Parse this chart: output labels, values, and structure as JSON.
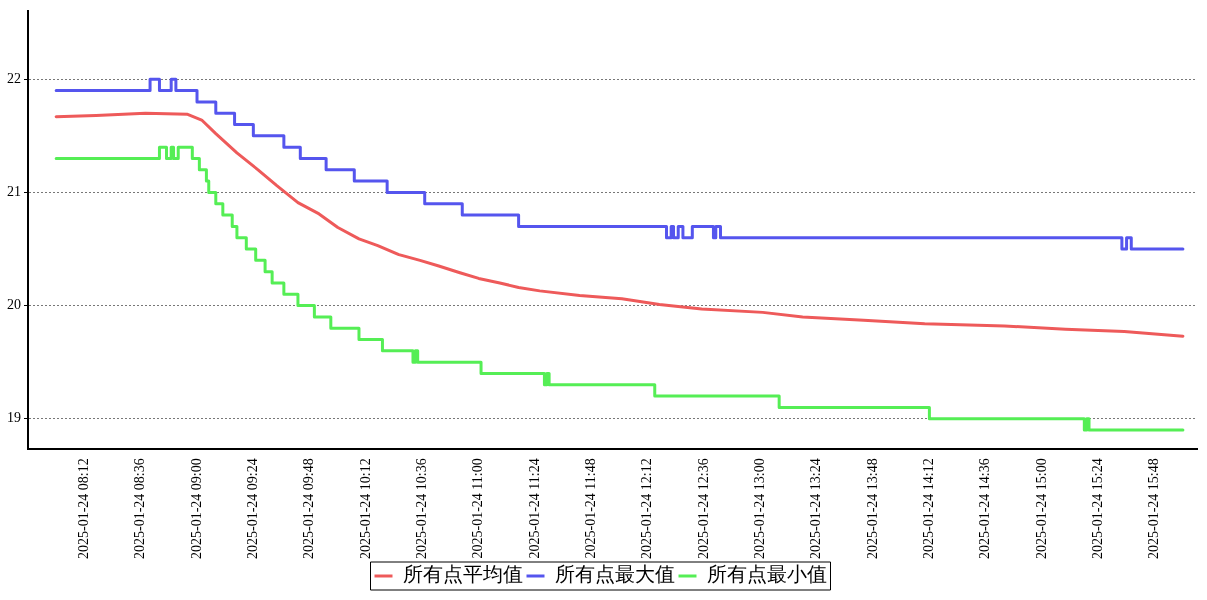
{
  "chart_data": {
    "type": "line",
    "xlim": [
      "2025-01-24T07:48",
      "2025-01-24T16:06"
    ],
    "ylim": [
      18.73,
      22.6
    ],
    "xticks": [
      {
        "value": "2025-01-24T08:12",
        "label": "2025-01-24 08:12"
      },
      {
        "value": "2025-01-24T08:36",
        "label": "2025-01-24 08:36"
      },
      {
        "value": "2025-01-24T09:00",
        "label": "2025-01-24 09:00"
      },
      {
        "value": "2025-01-24T09:24",
        "label": "2025-01-24 09:24"
      },
      {
        "value": "2025-01-24T09:48",
        "label": "2025-01-24 09:48"
      },
      {
        "value": "2025-01-24T10:12",
        "label": "2025-01-24 10:12"
      },
      {
        "value": "2025-01-24T10:36",
        "label": "2025-01-24 10:36"
      },
      {
        "value": "2025-01-24T11:00",
        "label": "2025-01-24 11:00"
      },
      {
        "value": "2025-01-24T11:24",
        "label": "2025-01-24 11:24"
      },
      {
        "value": "2025-01-24T11:48",
        "label": "2025-01-24 11:48"
      },
      {
        "value": "2025-01-24T12:12",
        "label": "2025-01-24 12:12"
      },
      {
        "value": "2025-01-24T12:36",
        "label": "2025-01-24 12:36"
      },
      {
        "value": "2025-01-24T13:00",
        "label": "2025-01-24 13:00"
      },
      {
        "value": "2025-01-24T13:24",
        "label": "2025-01-24 13:24"
      },
      {
        "value": "2025-01-24T13:48",
        "label": "2025-01-24 13:48"
      },
      {
        "value": "2025-01-24T14:12",
        "label": "2025-01-24 14:12"
      },
      {
        "value": "2025-01-24T14:36",
        "label": "2025-01-24 14:36"
      },
      {
        "value": "2025-01-24T15:00",
        "label": "2025-01-24 15:00"
      },
      {
        "value": "2025-01-24T15:24",
        "label": "2025-01-24 15:24"
      },
      {
        "value": "2025-01-24T15:48",
        "label": "2025-01-24 15:48"
      }
    ],
    "yticks": [
      19,
      20,
      21,
      22
    ],
    "grid": "y",
    "legend": "bottom",
    "marker": "none",
    "line_style": "solid",
    "series": [
      {
        "name": "所有点平均值",
        "color": "#ee5a5a",
        "type": "line",
        "x": [
          "2025-01-24T08:00",
          "2025-01-24T08:17",
          "2025-01-24T08:38",
          "2025-01-24T08:56",
          "2025-01-24T09:02",
          "2025-01-24T09:08",
          "2025-01-24T09:17",
          "2025-01-24T09:26",
          "2025-01-24T09:34",
          "2025-01-24T09:43",
          "2025-01-24T09:52",
          "2025-01-24T10:00",
          "2025-01-24T10:09",
          "2025-01-24T10:17",
          "2025-01-24T10:26",
          "2025-01-24T10:35",
          "2025-01-24T10:43",
          "2025-01-24T10:52",
          "2025-01-24T11:00",
          "2025-01-24T11:09",
          "2025-01-24T11:17",
          "2025-01-24T11:26",
          "2025-01-24T11:43",
          "2025-01-24T12:01",
          "2025-01-24T12:17",
          "2025-01-24T12:35",
          "2025-01-24T13:01",
          "2025-01-24T13:18",
          "2025-01-24T13:44",
          "2025-01-24T14:10",
          "2025-01-24T14:44",
          "2025-01-24T15:10",
          "2025-01-24T15:35",
          "2025-01-24T16:00"
        ],
        "values": [
          21.67,
          21.68,
          21.7,
          21.69,
          21.64,
          21.52,
          21.35,
          21.2,
          21.06,
          20.91,
          20.81,
          20.69,
          20.59,
          20.53,
          20.45,
          20.4,
          20.35,
          20.29,
          20.24,
          20.2,
          20.16,
          20.13,
          20.09,
          20.06,
          20.01,
          19.97,
          19.94,
          19.9,
          19.87,
          19.84,
          19.82,
          19.79,
          19.77,
          19.73
        ]
      },
      {
        "name": "所有点最大值",
        "color": "#5555ee",
        "type": "step",
        "x": [
          "2025-01-24T08:00",
          "2025-01-24T08:40",
          "2025-01-24T08:44",
          "2025-01-24T08:49",
          "2025-01-24T08:51",
          "2025-01-24T09:00",
          "2025-01-24T09:08",
          "2025-01-24T09:16",
          "2025-01-24T09:24",
          "2025-01-24T09:37",
          "2025-01-24T09:44",
          "2025-01-24T09:55",
          "2025-01-24T10:07",
          "2025-01-24T10:21",
          "2025-01-24T10:37",
          "2025-01-24T10:53",
          "2025-01-24T11:17",
          "2025-01-24T12:20",
          "2025-01-24T12:22",
          "2025-01-24T12:23",
          "2025-01-24T12:25",
          "2025-01-24T12:27",
          "2025-01-24T12:31",
          "2025-01-24T12:40",
          "2025-01-24T12:41",
          "2025-01-24T12:43",
          "2025-01-24T15:34",
          "2025-01-24T15:36",
          "2025-01-24T15:38",
          "2025-01-24T16:00"
        ],
        "values": [
          21.9,
          22.0,
          21.9,
          22.0,
          21.9,
          21.8,
          21.7,
          21.6,
          21.5,
          21.4,
          21.3,
          21.2,
          21.1,
          21.0,
          20.9,
          20.8,
          20.7,
          20.6,
          20.7,
          20.6,
          20.7,
          20.6,
          20.7,
          20.6,
          20.7,
          20.6,
          20.5,
          20.6,
          20.5,
          20.5
        ]
      },
      {
        "name": "所有点最小值",
        "color": "#55ee55",
        "type": "step",
        "x": [
          "2025-01-24T08:00",
          "2025-01-24T08:44",
          "2025-01-24T08:47",
          "2025-01-24T08:49",
          "2025-01-24T08:50",
          "2025-01-24T08:52",
          "2025-01-24T08:58",
          "2025-01-24T09:01",
          "2025-01-24T09:04",
          "2025-01-24T09:05",
          "2025-01-24T09:08",
          "2025-01-24T09:11",
          "2025-01-24T09:15",
          "2025-01-24T09:17",
          "2025-01-24T09:21",
          "2025-01-24T09:25",
          "2025-01-24T09:29",
          "2025-01-24T09:32",
          "2025-01-24T09:37",
          "2025-01-24T09:43",
          "2025-01-24T09:50",
          "2025-01-24T09:57",
          "2025-01-24T10:09",
          "2025-01-24T10:19",
          "2025-01-24T10:32",
          "2025-01-24T10:33",
          "2025-01-24T10:34",
          "2025-01-24T11:01",
          "2025-01-24T11:28",
          "2025-01-24T11:29",
          "2025-01-24T11:30",
          "2025-01-24T12:15",
          "2025-01-24T13:08",
          "2025-01-24T14:12",
          "2025-01-24T15:18",
          "2025-01-24T15:19",
          "2025-01-24T15:20",
          "2025-01-24T16:00"
        ],
        "values": [
          21.3,
          21.4,
          21.3,
          21.4,
          21.3,
          21.4,
          21.3,
          21.2,
          21.1,
          21.0,
          20.9,
          20.8,
          20.7,
          20.6,
          20.5,
          20.4,
          20.3,
          20.2,
          20.1,
          20.0,
          19.9,
          19.8,
          19.7,
          19.6,
          19.5,
          19.6,
          19.5,
          19.4,
          19.3,
          19.4,
          19.3,
          19.2,
          19.1,
          19.0,
          18.9,
          19.0,
          18.9,
          18.9
        ]
      }
    ]
  }
}
